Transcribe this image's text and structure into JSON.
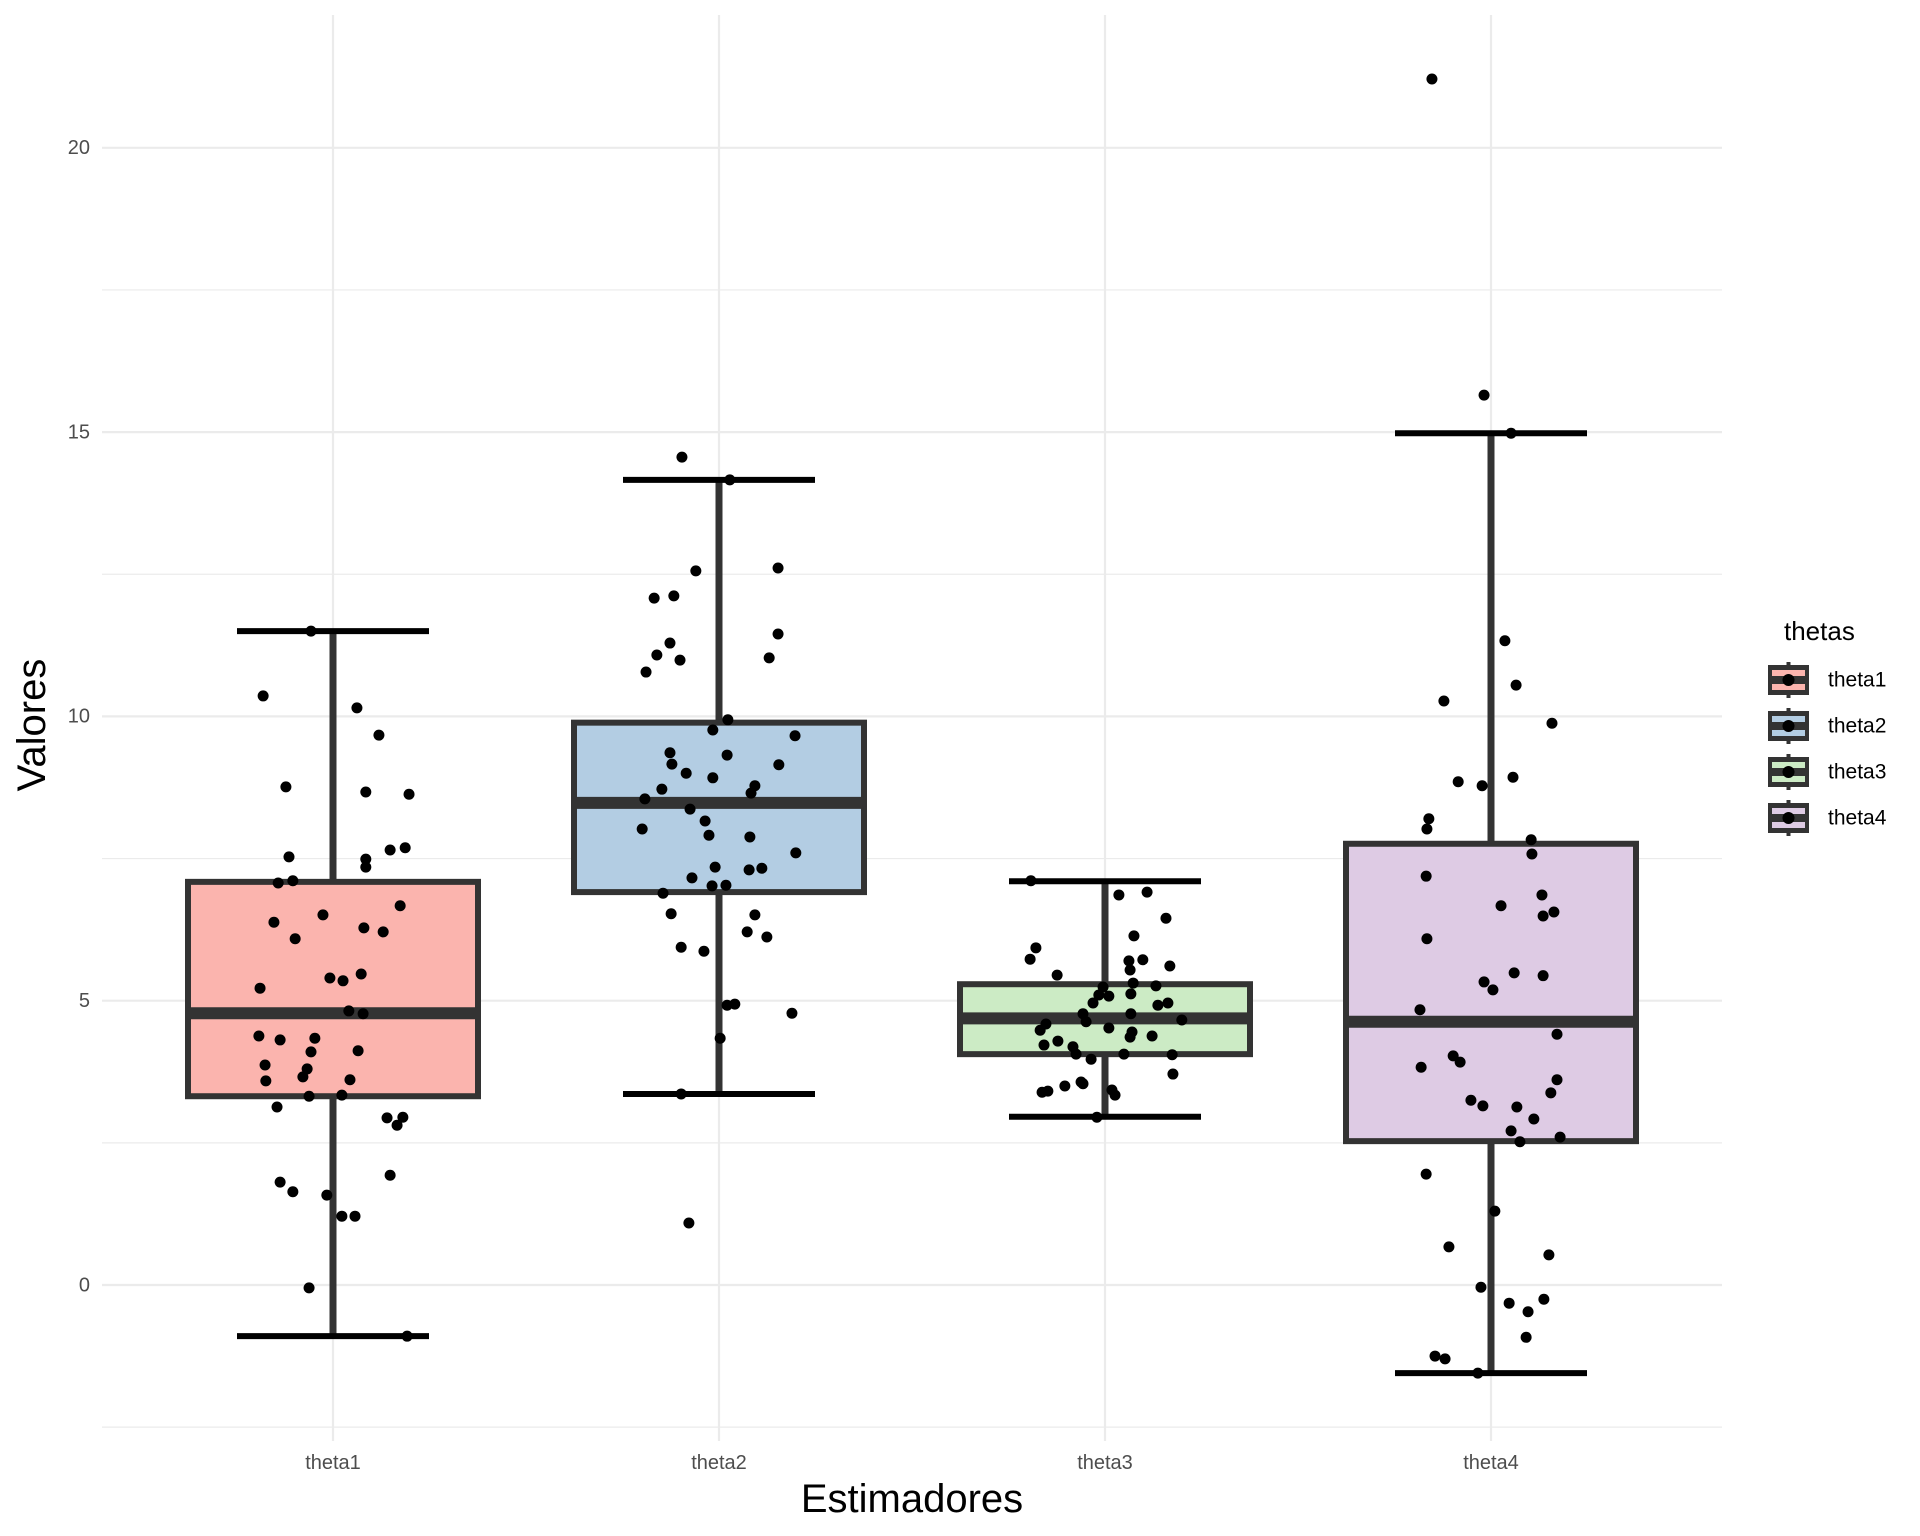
{
  "chart_data": {
    "type": "boxplot",
    "title": "",
    "xlabel": "Estimadores",
    "ylabel": "Valores",
    "ylim": [
      -2.6,
      22.3
    ],
    "yticks": [
      0,
      5,
      10,
      15,
      20
    ],
    "ytick_labels": [
      "0",
      "5",
      "10",
      "15",
      "20"
    ],
    "yminor": [
      -2.5,
      2.5,
      7.5,
      12.5,
      17.5
    ],
    "grid": true,
    "categories": [
      "theta1",
      "theta2",
      "theta3",
      "theta4"
    ],
    "legend": {
      "title": "thetas",
      "position": "right",
      "entries": [
        "theta1",
        "theta2",
        "theta3",
        "theta4"
      ]
    },
    "colors": {
      "theta1": "#FBB4AE",
      "theta2": "#B3CDE3",
      "theta3": "#CCEBC5",
      "theta4": "#DECBE4",
      "box_outline": "#333333",
      "whisker_cap": "#000000",
      "point": "#000000"
    },
    "series": [
      {
        "name": "theta1",
        "whisker_low": -0.9,
        "q1": 3.32,
        "median": 4.78,
        "q3": 7.09,
        "whisker_high": 11.5,
        "points": [
          [
            -0.057,
            11.5
          ],
          [
            -0.181,
            10.36
          ],
          [
            0.062,
            10.15
          ],
          [
            0.119,
            9.67
          ],
          [
            -0.122,
            8.76
          ],
          [
            0.085,
            8.67
          ],
          [
            0.197,
            8.63
          ],
          [
            -0.114,
            7.53
          ],
          [
            0.085,
            7.49
          ],
          [
            0.085,
            7.35
          ],
          [
            0.148,
            7.65
          ],
          [
            0.187,
            7.69
          ],
          [
            -0.142,
            7.07
          ],
          [
            -0.104,
            7.11
          ],
          [
            -0.153,
            6.38
          ],
          [
            -0.026,
            6.51
          ],
          [
            0.174,
            6.67
          ],
          [
            -0.098,
            6.09
          ],
          [
            0.08,
            6.28
          ],
          [
            0.13,
            6.21
          ],
          [
            -0.189,
            5.22
          ],
          [
            -0.008,
            5.4
          ],
          [
            0.026,
            5.35
          ],
          [
            0.073,
            5.47
          ],
          [
            0.041,
            4.82
          ],
          [
            0.078,
            4.77
          ],
          [
            -0.192,
            4.38
          ],
          [
            -0.137,
            4.31
          ],
          [
            -0.047,
            4.34
          ],
          [
            -0.057,
            4.1
          ],
          [
            0.065,
            4.12
          ],
          [
            -0.176,
            3.87
          ],
          [
            -0.067,
            3.8
          ],
          [
            -0.078,
            3.66
          ],
          [
            -0.174,
            3.59
          ],
          [
            0.044,
            3.61
          ],
          [
            -0.062,
            3.32
          ],
          [
            0.023,
            3.34
          ],
          [
            -0.145,
            3.13
          ],
          [
            0.14,
            2.94
          ],
          [
            0.181,
            2.95
          ],
          [
            0.166,
            2.81
          ],
          [
            0.148,
            1.93
          ],
          [
            -0.137,
            1.81
          ],
          [
            -0.104,
            1.64
          ],
          [
            -0.016,
            1.58
          ],
          [
            0.023,
            1.21
          ],
          [
            0.057,
            1.21
          ],
          [
            -0.062,
            -0.05
          ],
          [
            0.192,
            -0.9
          ]
        ]
      },
      {
        "name": "theta2",
        "whisker_low": 3.36,
        "q1": 6.91,
        "median": 8.48,
        "q3": 9.89,
        "whisker_high": 14.16,
        "points": [
          [
            -0.096,
            14.56
          ],
          [
            0.028,
            14.16
          ],
          [
            -0.06,
            12.56
          ],
          [
            0.153,
            12.61
          ],
          [
            -0.168,
            12.08
          ],
          [
            -0.117,
            12.12
          ],
          [
            0.153,
            11.45
          ],
          [
            -0.127,
            11.29
          ],
          [
            -0.161,
            11.08
          ],
          [
            -0.101,
            10.99
          ],
          [
            0.13,
            11.03
          ],
          [
            -0.189,
            10.78
          ],
          [
            0.023,
            9.94
          ],
          [
            -0.016,
            9.76
          ],
          [
            0.197,
            9.66
          ],
          [
            -0.127,
            9.36
          ],
          [
            -0.122,
            9.16
          ],
          [
            0.021,
            9.32
          ],
          [
            0.155,
            9.15
          ],
          [
            -0.085,
            9.0
          ],
          [
            -0.016,
            8.92
          ],
          [
            -0.148,
            8.72
          ],
          [
            0.093,
            8.78
          ],
          [
            0.083,
            8.65
          ],
          [
            -0.192,
            8.55
          ],
          [
            -0.075,
            8.37
          ],
          [
            -0.036,
            8.16
          ],
          [
            -0.199,
            8.02
          ],
          [
            -0.026,
            7.91
          ],
          [
            0.08,
            7.88
          ],
          [
            0.199,
            7.6
          ],
          [
            -0.01,
            7.35
          ],
          [
            0.078,
            7.3
          ],
          [
            0.111,
            7.33
          ],
          [
            -0.07,
            7.16
          ],
          [
            -0.018,
            7.02
          ],
          [
            0.018,
            7.03
          ],
          [
            -0.145,
            6.89
          ],
          [
            -0.124,
            6.53
          ],
          [
            0.093,
            6.51
          ],
          [
            0.073,
            6.21
          ],
          [
            0.124,
            6.12
          ],
          [
            -0.098,
            5.94
          ],
          [
            -0.039,
            5.87
          ],
          [
            0.021,
            4.92
          ],
          [
            0.041,
            4.94
          ],
          [
            0.189,
            4.78
          ],
          [
            0.003,
            4.34
          ],
          [
            -0.098,
            3.36
          ],
          [
            -0.078,
            1.09
          ]
        ]
      },
      {
        "name": "theta3",
        "whisker_low": 2.96,
        "q1": 4.06,
        "median": 4.69,
        "q3": 5.29,
        "whisker_high": 7.1,
        "points": [
          [
            -0.192,
            7.11
          ],
          [
            0.036,
            6.86
          ],
          [
            0.109,
            6.91
          ],
          [
            0.158,
            6.45
          ],
          [
            0.075,
            6.14
          ],
          [
            -0.179,
            5.93
          ],
          [
            -0.194,
            5.73
          ],
          [
            0.062,
            5.7
          ],
          [
            0.098,
            5.72
          ],
          [
            0.065,
            5.54
          ],
          [
            0.168,
            5.61
          ],
          [
            -0.124,
            5.45
          ],
          [
            0.073,
            5.31
          ],
          [
            0.132,
            5.26
          ],
          [
            -0.005,
            5.24
          ],
          [
            -0.016,
            5.1
          ],
          [
            0.01,
            5.08
          ],
          [
            0.067,
            5.12
          ],
          [
            -0.031,
            4.96
          ],
          [
            0.137,
            4.92
          ],
          [
            0.163,
            4.96
          ],
          [
            -0.057,
            4.77
          ],
          [
            0.067,
            4.77
          ],
          [
            0.199,
            4.66
          ],
          [
            -0.049,
            4.63
          ],
          [
            -0.153,
            4.59
          ],
          [
            -0.168,
            4.48
          ],
          [
            0.01,
            4.52
          ],
          [
            0.07,
            4.45
          ],
          [
            0.065,
            4.36
          ],
          [
            0.122,
            4.38
          ],
          [
            -0.122,
            4.29
          ],
          [
            -0.158,
            4.22
          ],
          [
            -0.083,
            4.19
          ],
          [
            -0.075,
            4.06
          ],
          [
            -0.036,
            3.97
          ],
          [
            0.049,
            4.06
          ],
          [
            0.174,
            4.05
          ],
          [
            0.176,
            3.71
          ],
          [
            -0.104,
            3.5
          ],
          [
            -0.062,
            3.57
          ],
          [
            -0.057,
            3.54
          ],
          [
            -0.163,
            3.39
          ],
          [
            -0.148,
            3.41
          ],
          [
            0.018,
            3.43
          ],
          [
            0.026,
            3.34
          ],
          [
            -0.021,
            2.95
          ]
        ]
      },
      {
        "name": "theta4",
        "whisker_low": -1.55,
        "q1": 2.53,
        "median": 4.63,
        "q3": 7.76,
        "whisker_high": 14.98,
        "points": [
          [
            -0.153,
            21.21
          ],
          [
            -0.018,
            15.65
          ],
          [
            0.052,
            14.98
          ],
          [
            0.036,
            11.33
          ],
          [
            0.065,
            10.55
          ],
          [
            -0.122,
            10.27
          ],
          [
            0.158,
            9.88
          ],
          [
            -0.085,
            8.85
          ],
          [
            -0.023,
            8.78
          ],
          [
            0.057,
            8.93
          ],
          [
            -0.161,
            8.2
          ],
          [
            -0.166,
            8.02
          ],
          [
            0.104,
            7.83
          ],
          [
            0.106,
            7.58
          ],
          [
            -0.168,
            7.19
          ],
          [
            0.132,
            6.86
          ],
          [
            0.026,
            6.67
          ],
          [
            0.135,
            6.49
          ],
          [
            0.163,
            6.56
          ],
          [
            -0.166,
            6.09
          ],
          [
            0.06,
            5.49
          ],
          [
            0.135,
            5.44
          ],
          [
            -0.018,
            5.33
          ],
          [
            0.005,
            5.19
          ],
          [
            -0.184,
            4.84
          ],
          [
            0.171,
            4.41
          ],
          [
            -0.098,
            4.03
          ],
          [
            -0.08,
            3.92
          ],
          [
            -0.181,
            3.83
          ],
          [
            0.171,
            3.61
          ],
          [
            0.155,
            3.38
          ],
          [
            -0.052,
            3.25
          ],
          [
            -0.021,
            3.15
          ],
          [
            0.067,
            3.13
          ],
          [
            0.111,
            2.92
          ],
          [
            0.052,
            2.71
          ],
          [
            0.075,
            2.52
          ],
          [
            0.179,
            2.6
          ],
          [
            -0.168,
            1.95
          ],
          [
            0.01,
            1.3
          ],
          [
            -0.109,
            0.67
          ],
          [
            0.15,
            0.53
          ],
          [
            -0.026,
            -0.04
          ],
          [
            0.047,
            -0.32
          ],
          [
            0.096,
            -0.47
          ],
          [
            0.137,
            -0.25
          ],
          [
            0.091,
            -0.92
          ],
          [
            -0.145,
            -1.25
          ],
          [
            -0.119,
            -1.3
          ],
          [
            -0.034,
            -1.55
          ]
        ]
      }
    ]
  }
}
